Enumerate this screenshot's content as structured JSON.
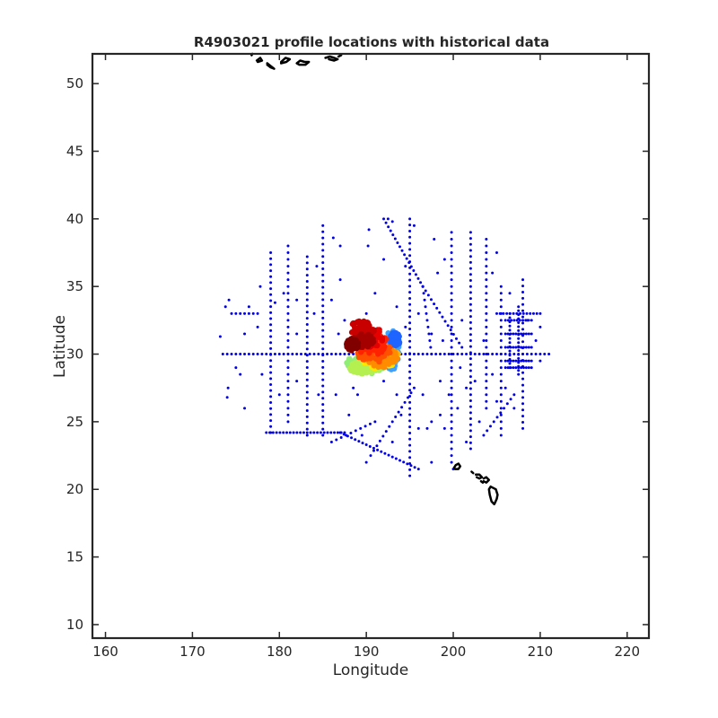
{
  "chart_data": {
    "type": "scatter",
    "title": "R4903021 profile locations with historical data",
    "xlabel": "Longitude",
    "ylabel": "Latitude",
    "xlim": [
      158.5,
      222.5
    ],
    "ylim": [
      9.0,
      52.2
    ],
    "xticks": [
      160,
      170,
      180,
      190,
      200,
      210,
      220
    ],
    "yticks": [
      10,
      15,
      20,
      25,
      30,
      35,
      40,
      45,
      50
    ],
    "grid": false,
    "legend": "none",
    "colors": {
      "historical": "#0000e6",
      "coast": "#000000",
      "axes": "#262626"
    },
    "series": [
      {
        "role": "historical",
        "segments": [
          {
            "x": [
              173.5,
              211.0
            ],
            "y": [
              30.0,
              30.0
            ],
            "step": 0.5
          },
          {
            "x": [
              179.0,
              179.0
            ],
            "y": [
              24.2,
              37.5
            ],
            "step": 0.45
          },
          {
            "x": [
              181.0,
              181.0
            ],
            "y": [
              25.0,
              38.0
            ],
            "step": 0.5
          },
          {
            "x": [
              185.0,
              185.0
            ],
            "y": [
              24.0,
              39.5
            ],
            "step": 0.45
          },
          {
            "x": [
              183.2,
              183.2
            ],
            "y": [
              24.0,
              37.2
            ],
            "step": 0.45
          },
          {
            "x": [
              202.0,
              202.0
            ],
            "y": [
              23.0,
              39.0
            ],
            "step": 0.45
          },
          {
            "x": [
              203.8,
              203.8
            ],
            "y": [
              26.0,
              38.5
            ],
            "step": 0.5
          },
          {
            "x": [
              205.5,
              205.5
            ],
            "y": [
              24.0,
              35.0
            ],
            "step": 0.5
          },
          {
            "x": [
              208.0,
              208.0
            ],
            "y": [
              24.5,
              35.5
            ],
            "step": 0.45
          },
          {
            "x": [
              195.0,
              195.0
            ],
            "y": [
              21.0,
              40.0
            ],
            "step": 0.45
          },
          {
            "x": [
              199.8,
              199.8
            ],
            "y": [
              22.0,
              39.0
            ],
            "step": 0.5
          },
          {
            "x": [
              178.5,
              187.5
            ],
            "y": [
              24.2,
              24.2
            ],
            "step": 0.4
          },
          {
            "x": [
              187.0,
              196.0
            ],
            "y": [
              24.2,
              21.5
            ],
            "step": 0.45
          },
          {
            "x": [
              192.0,
              196.5
            ],
            "y": [
              40.0,
              35.0
            ],
            "step": 0.4
          },
          {
            "x": [
              196.5,
              201.0
            ],
            "y": [
              35.0,
              30.5
            ],
            "step": 0.45
          },
          {
            "x": [
              190.5,
              195.5
            ],
            "y": [
              22.5,
              27.5
            ],
            "step": 0.5
          },
          {
            "x": [
              207.0,
              203.5
            ],
            "y": [
              27.0,
              24.0
            ],
            "step": 0.5
          },
          {
            "x": [
              196.5,
              197.5
            ],
            "y": [
              35.0,
              30.0
            ],
            "step": 0.5
          },
          {
            "x": [
              206.0,
              209.0
            ],
            "y": [
              31.5,
              31.5
            ],
            "step": 0.3
          },
          {
            "x": [
              206.0,
              209.0
            ],
            "y": [
              30.5,
              30.5
            ],
            "step": 0.3
          },
          {
            "x": [
              206.0,
              209.0
            ],
            "y": [
              29.5,
              29.5
            ],
            "step": 0.3
          },
          {
            "x": [
              206.0,
              209.0
            ],
            "y": [
              29.0,
              29.0
            ],
            "step": 0.3
          },
          {
            "x": [
              206.0,
              209.0
            ],
            "y": [
              32.5,
              32.5
            ],
            "step": 0.35
          },
          {
            "x": [
              206.5,
              206.5
            ],
            "y": [
              29.0,
              33.0
            ],
            "step": 0.3
          },
          {
            "x": [
              207.5,
              207.5
            ],
            "y": [
              28.5,
              33.5
            ],
            "step": 0.3
          },
          {
            "x": [
              205.0,
              210.0
            ],
            "y": [
              33.0,
              33.0
            ],
            "step": 0.4
          },
          {
            "x": [
              174.5,
              177.5
            ],
            "y": [
              33.0,
              33.0
            ],
            "step": 0.5
          },
          {
            "x": [
              186.0,
              191.0
            ],
            "y": [
              23.5,
              25.0
            ],
            "step": 0.6
          }
        ],
        "points": [
          [
            173.2,
            31.3
          ],
          [
            173.8,
            33.5
          ],
          [
            174.2,
            34.0
          ],
          [
            174.1,
            27.5
          ],
          [
            174.0,
            26.8
          ],
          [
            175.5,
            28.5
          ],
          [
            176.0,
            31.5
          ],
          [
            176.5,
            33.5
          ],
          [
            177.5,
            32.0
          ],
          [
            177.8,
            35.0
          ],
          [
            178.0,
            28.5
          ],
          [
            179.5,
            33.8
          ],
          [
            180.5,
            34.5
          ],
          [
            182.0,
            31.5
          ],
          [
            182.0,
            34.0
          ],
          [
            184.0,
            33.0
          ],
          [
            184.3,
            36.5
          ],
          [
            186.2,
            38.6
          ],
          [
            186.0,
            34.0
          ],
          [
            187.0,
            35.5
          ],
          [
            187.5,
            32.5
          ],
          [
            188.2,
            29.5
          ],
          [
            188.5,
            27.5
          ],
          [
            188.0,
            25.5
          ],
          [
            189.0,
            27.0
          ],
          [
            189.5,
            24.0
          ],
          [
            190.0,
            22.0
          ],
          [
            190.0,
            33.0
          ],
          [
            190.2,
            38.0
          ],
          [
            190.3,
            39.2
          ],
          [
            191.0,
            34.5
          ],
          [
            192.0,
            28.0
          ],
          [
            192.0,
            37.0
          ],
          [
            192.5,
            40.0
          ],
          [
            193.0,
            39.8
          ],
          [
            193.5,
            33.5
          ],
          [
            193.5,
            27.0
          ],
          [
            194.0,
            25.5
          ],
          [
            194.5,
            32.0
          ],
          [
            194.5,
            36.5
          ],
          [
            195.5,
            39.5
          ],
          [
            196.0,
            33.0
          ],
          [
            196.5,
            27.0
          ],
          [
            197.0,
            24.5
          ],
          [
            197.5,
            25.0
          ],
          [
            197.5,
            31.5
          ],
          [
            197.8,
            38.5
          ],
          [
            198.2,
            36.0
          ],
          [
            198.5,
            28.0
          ],
          [
            198.5,
            25.5
          ],
          [
            198.8,
            31.0
          ],
          [
            199.0,
            37.0
          ],
          [
            199.5,
            27.0
          ],
          [
            199.0,
            24.5
          ],
          [
            200.5,
            26.0
          ],
          [
            200.8,
            29.0
          ],
          [
            201.0,
            32.5
          ],
          [
            201.5,
            27.5
          ],
          [
            201.5,
            23.5
          ],
          [
            202.5,
            28.0
          ],
          [
            203.0,
            25.0
          ],
          [
            203.5,
            31.0
          ],
          [
            204.5,
            28.5
          ],
          [
            204.5,
            36.0
          ],
          [
            205.0,
            37.5
          ],
          [
            205.0,
            26.5
          ],
          [
            206.0,
            27.5
          ],
          [
            206.5,
            34.5
          ],
          [
            207.0,
            26.0
          ],
          [
            208.5,
            32.5
          ],
          [
            209.5,
            31.0
          ],
          [
            210.0,
            32.0
          ],
          [
            210.0,
            29.5
          ],
          [
            200.0,
            21.5
          ],
          [
            197.5,
            22.0
          ],
          [
            196.0,
            24.5
          ],
          [
            193.0,
            23.5
          ],
          [
            187.0,
            38.0
          ],
          [
            180.0,
            27.0
          ],
          [
            182.0,
            28.0
          ],
          [
            176.0,
            26.0
          ],
          [
            175.0,
            29.0
          ],
          [
            184.5,
            27.0
          ],
          [
            186.5,
            27.0
          ],
          [
            186.8,
            31.5
          ]
        ]
      },
      {
        "role": "profiles",
        "clusters": [
          {
            "color": "#90ee78",
            "cx": 190.0,
            "cy": 29.3,
            "rx": 2.3,
            "ry": 0.75
          },
          {
            "color": "#b4f050",
            "cx": 189.8,
            "cy": 29.0,
            "rx": 1.8,
            "ry": 0.45
          },
          {
            "color": "#3ca0ff",
            "cx": 193.0,
            "cy": 30.3,
            "rx": 0.8,
            "ry": 1.6
          },
          {
            "color": "#1e64ff",
            "cx": 193.3,
            "cy": 31.1,
            "rx": 0.6,
            "ry": 0.5
          },
          {
            "color": "#ffe600",
            "cx": 191.5,
            "cy": 29.5,
            "rx": 1.8,
            "ry": 0.6
          },
          {
            "color": "#ffb400",
            "cx": 191.6,
            "cy": 29.9,
            "rx": 2.2,
            "ry": 0.6
          },
          {
            "color": "#ff8c00",
            "cx": 191.8,
            "cy": 29.8,
            "rx": 1.8,
            "ry": 0.8
          },
          {
            "color": "#ff5000",
            "cx": 190.8,
            "cy": 30.3,
            "rx": 2.0,
            "ry": 1.0
          },
          {
            "color": "#ff2200",
            "cx": 190.6,
            "cy": 30.8,
            "rx": 1.8,
            "ry": 0.9
          },
          {
            "color": "#e60000",
            "cx": 190.3,
            "cy": 31.3,
            "rx": 1.8,
            "ry": 0.8
          },
          {
            "color": "#c80000",
            "cx": 189.5,
            "cy": 31.8,
            "rx": 1.5,
            "ry": 0.7
          },
          {
            "color": "#a50000",
            "cx": 189.6,
            "cy": 31.0,
            "rx": 1.3,
            "ry": 0.5
          },
          {
            "color": "#800000",
            "cx": 188.4,
            "cy": 30.7,
            "rx": 0.7,
            "ry": 0.45
          }
        ]
      },
      {
        "role": "coast",
        "paths": [
          [
            [
              177.4,
              51.7
            ],
            [
              177.8,
              51.9
            ],
            [
              178.0,
              51.7
            ],
            [
              177.5,
              51.6
            ]
          ],
          [
            [
              178.6,
              51.5
            ],
            [
              179.0,
              51.3
            ],
            [
              179.4,
              51.1
            ],
            [
              179.0,
              51.2
            ],
            [
              178.6,
              51.4
            ]
          ],
          [
            [
              180.2,
              51.6
            ],
            [
              180.7,
              51.9
            ],
            [
              181.2,
              51.8
            ],
            [
              180.8,
              51.6
            ],
            [
              180.2,
              51.5
            ]
          ],
          [
            [
              182.0,
              51.5
            ],
            [
              182.4,
              51.7
            ],
            [
              182.9,
              51.6
            ],
            [
              183.4,
              51.6
            ],
            [
              183.0,
              51.4
            ],
            [
              182.3,
              51.4
            ],
            [
              182.0,
              51.5
            ]
          ],
          [
            [
              185.3,
              51.9
            ],
            [
              185.8,
              52.0
            ],
            [
              186.3,
              51.9
            ],
            [
              186.7,
              51.8
            ],
            [
              186.3,
              51.7
            ],
            [
              185.7,
              51.8
            ]
          ],
          [
            [
              186.8,
              52.0
            ],
            [
              187.1,
              52.1
            ]
          ],
          [
            [
              176.8,
              52.1
            ],
            [
              176.9,
              52.2
            ]
          ],
          [
            [
              200.1,
              21.6
            ],
            [
              200.3,
              21.8
            ],
            [
              200.6,
              21.9
            ],
            [
              200.8,
              21.7
            ],
            [
              200.6,
              21.5
            ],
            [
              200.2,
              21.5
            ]
          ],
          [
            [
              202.1,
              21.3
            ],
            [
              202.3,
              21.2
            ]
          ],
          [
            [
              202.6,
              21.1
            ],
            [
              203.0,
              21.1
            ],
            [
              203.3,
              20.9
            ],
            [
              203.0,
              20.8
            ],
            [
              202.7,
              20.9
            ]
          ],
          [
            [
              203.5,
              20.8
            ],
            [
              203.8,
              20.9
            ],
            [
              204.1,
              20.7
            ],
            [
              203.8,
              20.5
            ],
            [
              203.5,
              20.6
            ]
          ],
          [
            [
              203.2,
              20.6
            ],
            [
              203.4,
              20.5
            ]
          ],
          [
            [
              204.3,
              20.2
            ],
            [
              204.6,
              20.1
            ],
            [
              204.9,
              20.0
            ],
            [
              205.1,
              19.6
            ],
            [
              205.0,
              19.3
            ],
            [
              204.8,
              19.0
            ],
            [
              204.7,
              18.9
            ],
            [
              204.4,
              19.1
            ],
            [
              204.2,
              19.6
            ],
            [
              204.1,
              20.0
            ],
            [
              204.3,
              20.2
            ]
          ]
        ]
      }
    ]
  }
}
